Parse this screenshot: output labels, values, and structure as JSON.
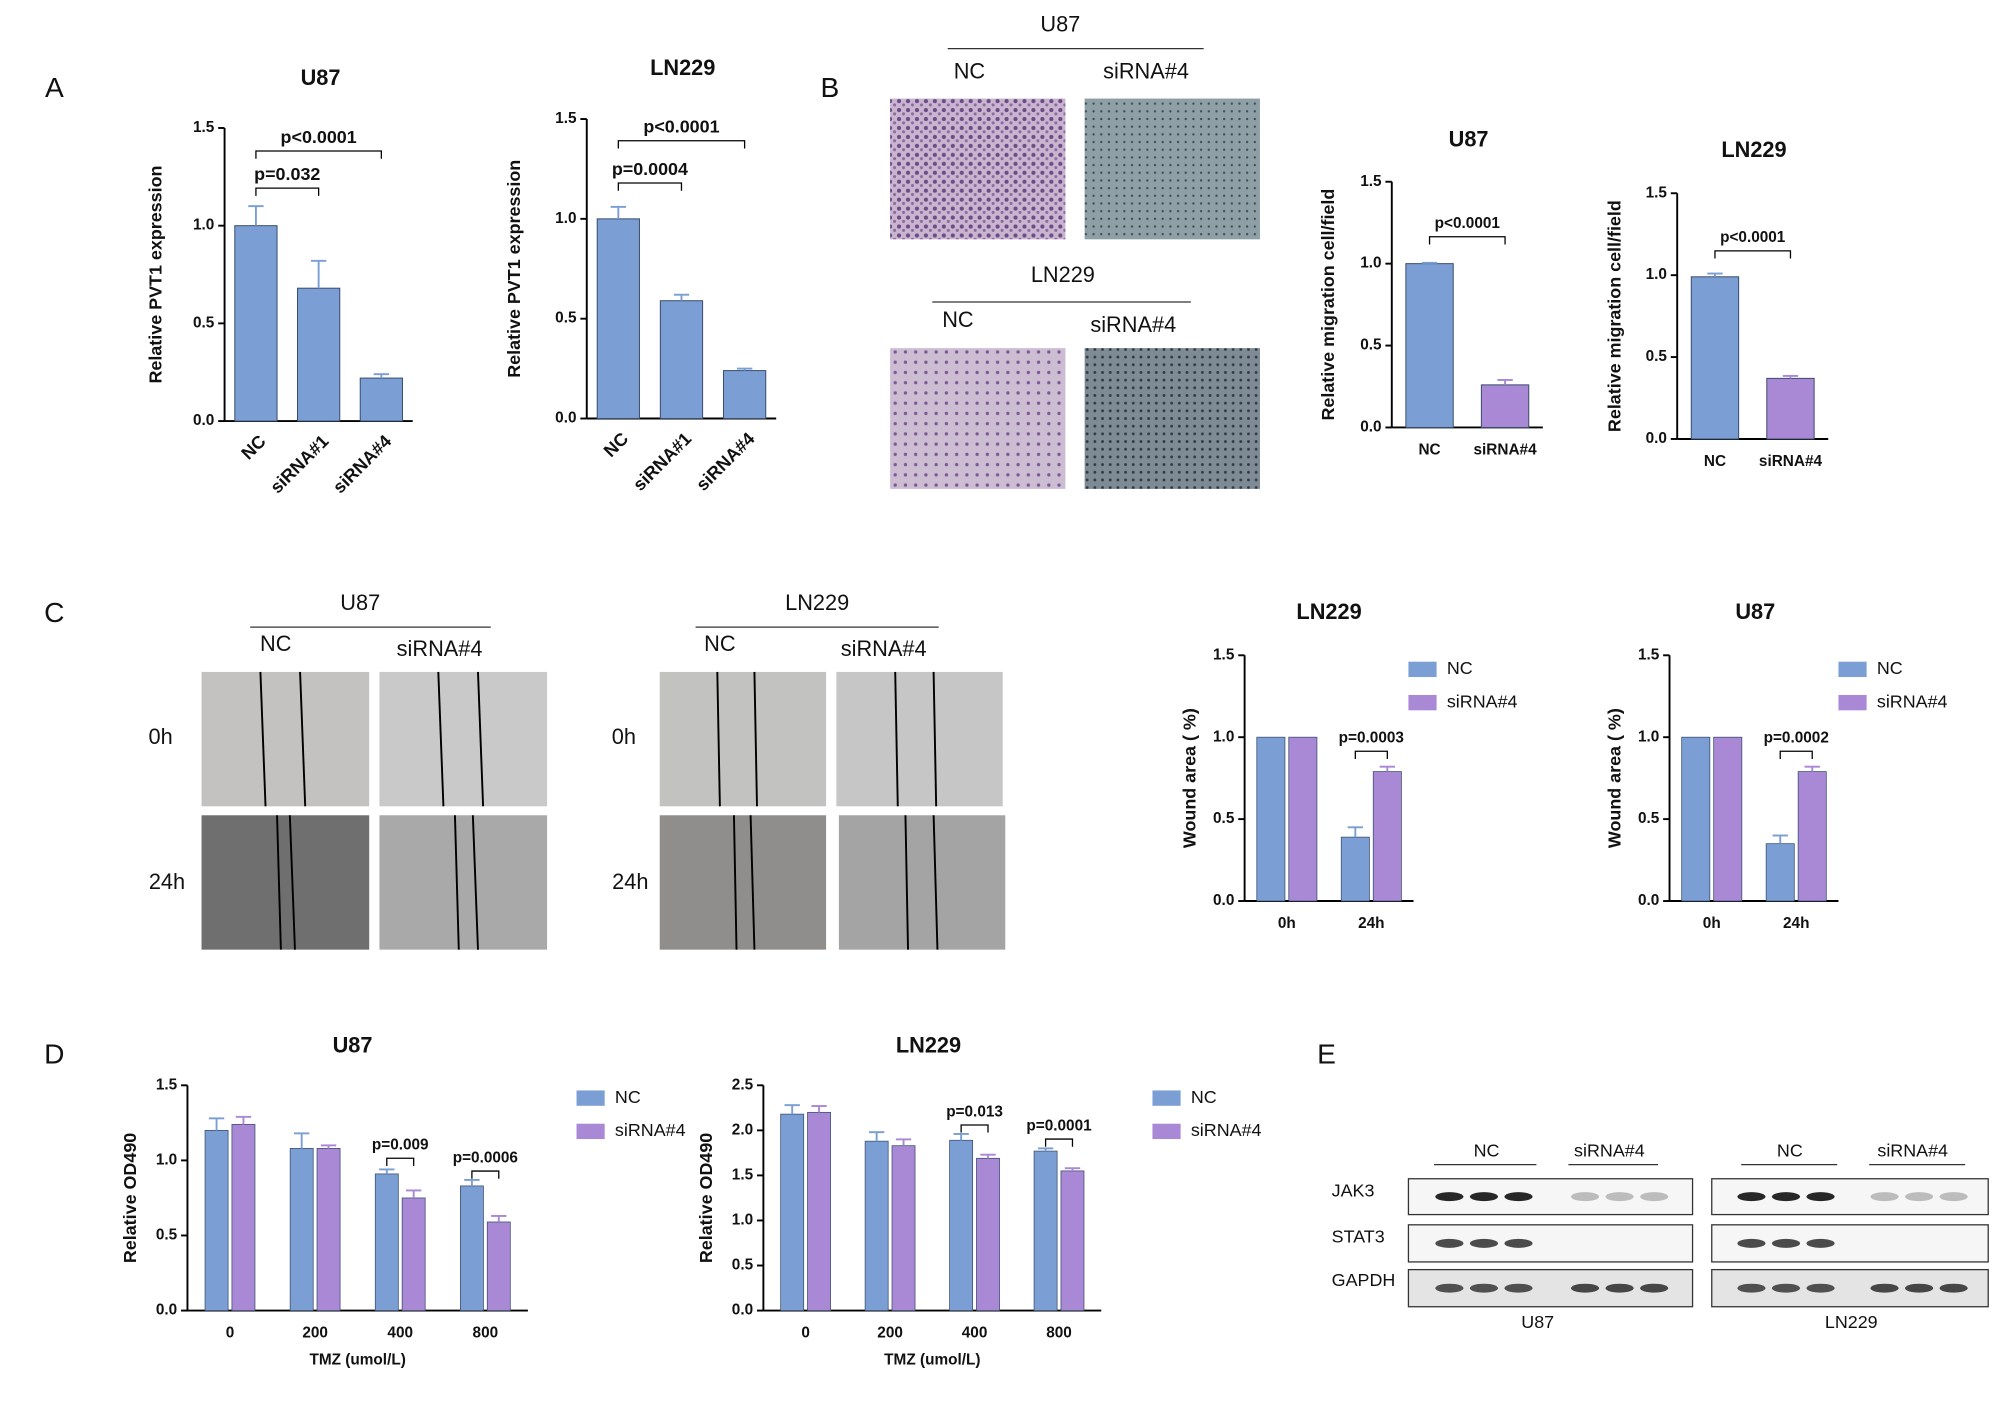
{
  "panels": {
    "labels": [
      "A",
      "B",
      "C",
      "D",
      "E"
    ]
  },
  "transwell": {
    "groups": [
      {
        "title": "U87",
        "conditions": [
          "NC",
          "siRNA#4"
        ]
      },
      {
        "title": "LN229",
        "conditions": [
          "NC",
          "siRNA#4"
        ]
      }
    ]
  },
  "wound_healing": {
    "groups": [
      {
        "title": "U87",
        "conditions": [
          "NC",
          "siRNA#4"
        ],
        "times": [
          "0h",
          "24h"
        ]
      },
      {
        "title": "LN229",
        "conditions": [
          "NC",
          "siRNA#4"
        ],
        "times": [
          "0h",
          "24h"
        ]
      }
    ]
  },
  "western_blot": {
    "proteins": [
      "JAK3",
      "STAT3",
      "GAPDH"
    ],
    "groups": [
      {
        "cell_line": "U87",
        "conditions": [
          "NC",
          "siRNA#4"
        ]
      },
      {
        "cell_line": "LN229",
        "conditions": [
          "NC",
          "siRNA#4"
        ]
      }
    ]
  },
  "chart_data": [
    {
      "type": "bar",
      "title": "U87",
      "ylabel": "Relative PVT1 expression",
      "categories": [
        "NC",
        "siRNA#1",
        "siRNA#4"
      ],
      "values": [
        1.0,
        0.68,
        0.22
      ],
      "errors": [
        0.1,
        0.14,
        0.02
      ],
      "color": "#7b9fd4",
      "ylim": [
        0,
        1.5
      ],
      "yticks": [
        {
          "value": 0,
          "label": "0.0"
        },
        0.5,
        {
          "value": 1,
          "label": "1.0"
        },
        1.5
      ],
      "annotations": [
        "p=0.032",
        "p<0.0001"
      ]
    },
    {
      "type": "bar",
      "title": "LN229",
      "ylabel": "Relative PVT1 expression",
      "categories": [
        "NC",
        "siRNA#1",
        "siRNA#4"
      ],
      "values": [
        1.0,
        0.59,
        0.24
      ],
      "errors": [
        0.06,
        0.03,
        0.01
      ],
      "color": "#7b9fd4",
      "ylim": [
        0,
        1.5
      ],
      "yticks": [
        {
          "value": 0,
          "label": "0.0"
        },
        0.5,
        {
          "value": 1,
          "label": "1.0"
        },
        1.5
      ],
      "annotations": [
        "p=0.0004",
        "p<0.0001"
      ]
    },
    {
      "type": "bar",
      "title": "U87",
      "ylabel": "Relative migration cell/field",
      "categories": [
        "NC",
        "siRNA#4"
      ],
      "values": [
        1.0,
        0.26
      ],
      "errors": [
        0.005,
        0.03
      ],
      "colors": [
        "#7b9fd4",
        "#a988d6"
      ],
      "ylim": [
        0,
        1.5
      ],
      "yticks": [
        {
          "value": 0,
          "label": "0.0"
        },
        0.5,
        {
          "value": 1,
          "label": "1.0"
        },
        1.5
      ],
      "annotations": [
        "p<0.0001"
      ]
    },
    {
      "type": "bar",
      "title": "LN229",
      "ylabel": "Relative migration cell/field",
      "categories": [
        "NC",
        "siRNA#4"
      ],
      "values": [
        0.99,
        0.37
      ],
      "errors": [
        0.02,
        0.015
      ],
      "colors": [
        "#7b9fd4",
        "#a988d6"
      ],
      "ylim": [
        0,
        1.5
      ],
      "yticks": [
        {
          "value": 0,
          "label": "0.0"
        },
        0.5,
        {
          "value": 1,
          "label": "1.0"
        },
        1.5
      ],
      "annotations": [
        "p<0.0001"
      ]
    },
    {
      "type": "grouped-bar",
      "title": "LN229",
      "ylabel": "Wound area ( %)",
      "categories": [
        "0h",
        "24h"
      ],
      "series": [
        {
          "name": "NC",
          "color": "#7b9fd4",
          "values": [
            1.0,
            0.39
          ],
          "errors": [
            null,
            0.06
          ]
        },
        {
          "name": "siRNA#4",
          "color": "#a988d6",
          "values": [
            1.0,
            0.79
          ],
          "errors": [
            null,
            0.03
          ]
        }
      ],
      "ylim": [
        0,
        1.5
      ],
      "yticks": [
        {
          "value": 0,
          "label": "0.0"
        },
        0.5,
        {
          "value": 1,
          "label": "1.0"
        },
        1.5
      ],
      "legend": "upper right",
      "annotations": [
        "p=0.0003"
      ]
    },
    {
      "type": "grouped-bar",
      "title": "U87",
      "ylabel": "Wound area ( %)",
      "categories": [
        "0h",
        "24h"
      ],
      "series": [
        {
          "name": "NC",
          "color": "#7b9fd4",
          "values": [
            1.0,
            0.35
          ],
          "errors": [
            null,
            0.05
          ]
        },
        {
          "name": "siRNA#4",
          "color": "#a988d6",
          "values": [
            1.0,
            0.79
          ],
          "errors": [
            null,
            0.03
          ]
        }
      ],
      "ylim": [
        0,
        1.5
      ],
      "yticks": [
        {
          "value": 0,
          "label": "0.0"
        },
        0.5,
        {
          "value": 1,
          "label": "1.0"
        },
        1.5
      ],
      "legend": "upper right",
      "annotations": [
        "p=0.0002"
      ]
    },
    {
      "type": "grouped-bar",
      "title": "U87",
      "ylabel": "Relative OD490",
      "xlabel": "TMZ (umol/L)",
      "categories": [
        "0",
        "200",
        "400",
        "800"
      ],
      "series": [
        {
          "name": "NC",
          "color": "#7b9fd4",
          "values": [
            1.2,
            1.08,
            0.91,
            0.83
          ],
          "errors": [
            0.08,
            0.1,
            0.03,
            0.04
          ]
        },
        {
          "name": "siRNA#4",
          "color": "#a988d6",
          "values": [
            1.24,
            1.08,
            0.75,
            0.59
          ],
          "errors": [
            0.05,
            0.02,
            0.05,
            0.04
          ]
        }
      ],
      "ylim": [
        0,
        1.5
      ],
      "yticks": [
        {
          "value": 0,
          "label": "0.0"
        },
        0.5,
        {
          "value": 1,
          "label": "1.0"
        },
        1.5
      ],
      "legend": "right",
      "annotations": [
        "p=0.009",
        "p=0.0006"
      ]
    },
    {
      "type": "grouped-bar",
      "title": "LN229",
      "ylabel": "Relative OD490",
      "xlabel": "TMZ (umol/L)",
      "categories": [
        "0",
        "200",
        "400",
        "800"
      ],
      "series": [
        {
          "name": "NC",
          "color": "#7b9fd4",
          "values": [
            2.18,
            1.88,
            1.89,
            1.77
          ],
          "errors": [
            0.1,
            0.1,
            0.07,
            0.03
          ]
        },
        {
          "name": "siRNA#4",
          "color": "#a988d6",
          "values": [
            2.2,
            1.83,
            1.69,
            1.55
          ],
          "errors": [
            0.07,
            0.07,
            0.04,
            0.03
          ]
        }
      ],
      "ylim": [
        0,
        2.5
      ],
      "yticks": [
        {
          "value": 0,
          "label": "0.0"
        },
        0.5,
        {
          "value": 1,
          "label": "1.0"
        },
        1.5,
        {
          "value": 2,
          "label": "2.0"
        },
        2.5
      ],
      "legend": "right",
      "annotations": [
        "p=0.013",
        "p=0.0001"
      ]
    }
  ]
}
